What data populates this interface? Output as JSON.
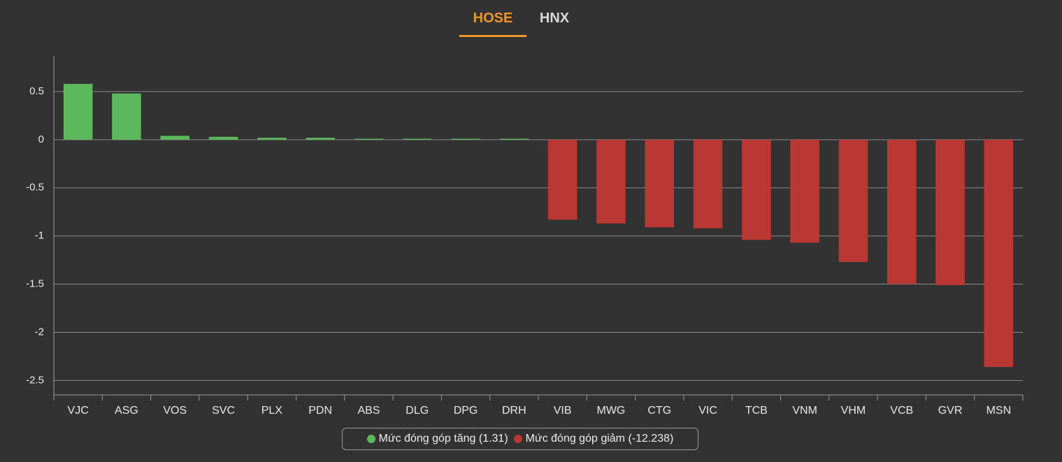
{
  "tabs": [
    "HOSE",
    "HNX"
  ],
  "chart_data": {
    "type": "bar",
    "categories": [
      "VJC",
      "ASG",
      "VOS",
      "SVC",
      "PLX",
      "PDN",
      "ABS",
      "DLG",
      "DPG",
      "DRH",
      "VIB",
      "MWG",
      "CTG",
      "VIC",
      "TCB",
      "VNM",
      "VHM",
      "VCB",
      "GVR",
      "MSN"
    ],
    "series": [
      {
        "name": "Mức đóng góp tăng (1.31)",
        "color": "#5cb85c",
        "values": [
          0.58,
          0.48,
          0.04,
          0.03,
          0.02,
          0.02,
          0.01,
          0.01,
          0.01,
          0.01,
          null,
          null,
          null,
          null,
          null,
          null,
          null,
          null,
          null,
          null
        ]
      },
      {
        "name": "Mức đóng góp giảm (-12.238)",
        "color": "#b93834",
        "values": [
          null,
          null,
          null,
          null,
          null,
          null,
          null,
          null,
          null,
          null,
          -0.83,
          -0.87,
          -0.91,
          -0.92,
          -1.04,
          -1.07,
          -1.27,
          -1.5,
          -1.51,
          -2.36
        ]
      }
    ],
    "ylim": [
      -2.65,
      0.87
    ],
    "yticks": [
      -2.5,
      -2,
      -1.5,
      -1,
      -0.5,
      0,
      0.5
    ],
    "grid": true,
    "legend": "bottom"
  }
}
